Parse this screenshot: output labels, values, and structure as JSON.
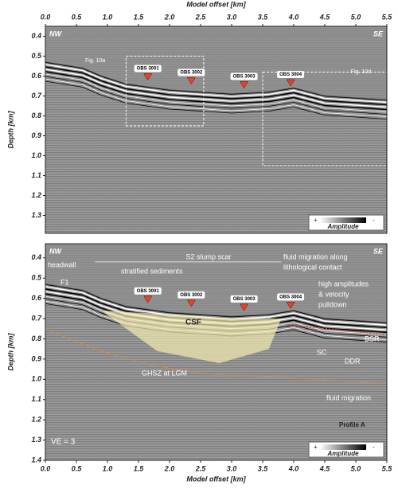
{
  "chart_data": [
    {
      "type": "seismic",
      "x_label": "Model offset [km]",
      "y_label": "Depth [km]",
      "xlim": [
        0,
        5.5
      ],
      "ylim": [
        0.35,
        1.39
      ],
      "xticks": [
        {
          "value": 0,
          "label": "0.0"
        },
        {
          "value": 0.5,
          "label": "0.5"
        },
        {
          "value": 1,
          "label": "1.0"
        },
        {
          "value": 1.5,
          "label": "1.5"
        },
        {
          "value": 2,
          "label": "2.0"
        },
        {
          "value": 2.5,
          "label": "2.5"
        },
        {
          "value": 3,
          "label": "3.0"
        },
        {
          "value": 3.5,
          "label": "3.5"
        },
        {
          "value": 4,
          "label": "4.0"
        },
        {
          "value": 4.5,
          "label": "4.5"
        },
        {
          "value": 5,
          "label": "5.0"
        },
        {
          "value": 5.5,
          "label": "5.5"
        }
      ],
      "yticks": [
        0.4,
        0.5,
        0.6,
        0.7,
        0.8,
        0.9,
        {
          "value": 1,
          "label": "1.0"
        },
        1.1,
        1.2,
        1.3
      ],
      "corner_labels": [
        "NW",
        "SE"
      ],
      "obs": {
        "names": [
          "OBS 3001",
          "OBS 3002",
          "OBS 3003",
          "OBS 3004"
        ],
        "x": [
          1.65,
          2.35,
          3.2,
          3.95
        ],
        "values": [
          0.62,
          0.64,
          0.66,
          0.65
        ],
        "color": "#e8432a"
      },
      "annotations": [
        "Fig. 10a",
        "Fig. 10d"
      ],
      "legend": {
        "title": "Amplitude",
        "plus": "+",
        "minus": "-"
      }
    },
    {
      "type": "seismic",
      "x_label": "Model offset [km]",
      "y_label": "Depth [km]",
      "xlim": [
        0,
        5.5
      ],
      "ylim": [
        0.33,
        1.4
      ],
      "xticks": [
        {
          "value": 0,
          "label": "0.0"
        },
        {
          "value": 0.5,
          "label": "0.5"
        },
        {
          "value": 1,
          "label": "1.0"
        },
        {
          "value": 1.5,
          "label": "1.5"
        },
        {
          "value": 2,
          "label": "2.0"
        },
        {
          "value": 2.5,
          "label": "2.5"
        },
        {
          "value": 3,
          "label": "3.0"
        },
        {
          "value": 3.5,
          "label": "3.5"
        },
        {
          "value": 4,
          "label": "4.0"
        },
        {
          "value": 4.5,
          "label": "4.5"
        },
        {
          "value": 5,
          "label": "5.0"
        },
        {
          "value": 5.5,
          "label": "5.5"
        }
      ],
      "yticks": [
        0.4,
        0.5,
        0.6,
        0.7,
        0.8,
        0.9,
        {
          "value": 1,
          "label": "1.0"
        },
        1.1,
        1.2,
        1.3,
        1.4
      ],
      "corner_labels": [
        "NW",
        "SE"
      ],
      "obs": {
        "names": [
          "OBS 3001",
          "OBS 3002",
          "OBS 3003",
          "OBS 3004"
        ],
        "x": [
          1.65,
          2.35,
          3.2,
          3.95
        ],
        "values": [
          0.62,
          0.64,
          0.66,
          0.65
        ],
        "color": "#e8432a"
      },
      "annotations": [
        "headwall",
        "S2 slump scar",
        "fluid migration along",
        "lithological contact",
        "F1",
        "stratified sediments",
        "high amplitudes",
        "& velocity",
        "pulldown",
        "CSF",
        "BSR",
        "SC",
        "DDR",
        "GHSZ at LGM",
        "fluid migration",
        "VE = 3",
        "Profile A"
      ],
      "legend": {
        "title": "Amplitude",
        "plus": "+",
        "minus": "-"
      }
    }
  ]
}
